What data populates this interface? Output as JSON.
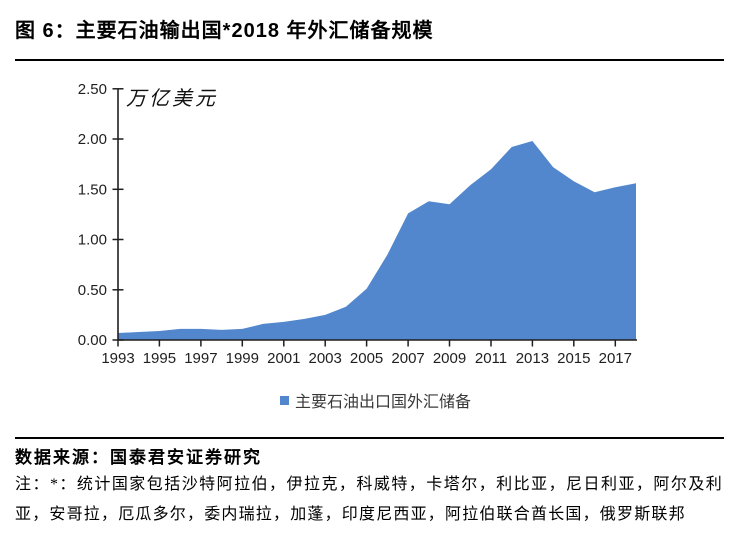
{
  "title": "图 6：主要石油输出国*2018 年外汇储备规模",
  "chart_data": {
    "type": "area",
    "title": "主要石油输出国2018年外汇储备规模",
    "unit_label": "万亿美元",
    "xlabel": "",
    "ylabel": "万亿美元",
    "x": [
      1993,
      1994,
      1995,
      1996,
      1997,
      1998,
      1999,
      2000,
      2001,
      2002,
      2003,
      2004,
      2005,
      2006,
      2007,
      2008,
      2009,
      2010,
      2011,
      2012,
      2013,
      2014,
      2015,
      2016,
      2017,
      2018
    ],
    "series": [
      {
        "name": "主要石油出口国外汇储备",
        "values": [
          0.07,
          0.08,
          0.09,
          0.11,
          0.11,
          0.1,
          0.11,
          0.16,
          0.18,
          0.21,
          0.25,
          0.33,
          0.51,
          0.85,
          1.26,
          1.38,
          1.35,
          1.54,
          1.7,
          1.92,
          1.98,
          1.72,
          1.58,
          1.47,
          1.52,
          1.56
        ]
      }
    ],
    "x_tick_labels": [
      "1993",
      "1995",
      "1997",
      "1999",
      "2001",
      "2003",
      "2005",
      "2007",
      "2009",
      "2011",
      "2013",
      "2015",
      "2017"
    ],
    "y_tick_labels": [
      "0.00",
      "0.50",
      "1.00",
      "1.50",
      "2.00",
      "2.50"
    ],
    "ylim": [
      0,
      2.5
    ],
    "grid": false,
    "legend_position": "bottom",
    "area_color": "#5287CE",
    "axis_color": "#1f1f1f"
  },
  "legend": {
    "label": "主要石油出口国外汇储备",
    "swatch_icon": "blue-square-icon"
  },
  "footer": {
    "source": "数据来源：国泰君安证券研究",
    "note": "注：*：统计国家包括沙特阿拉伯，伊拉克，科威特，卡塔尔，利比亚，尼日利亚，阿尔及利亚，安哥拉，厄瓜多尔，委内瑞拉，加蓬，印度尼西亚，阿拉伯联合酋长国，俄罗斯联邦"
  }
}
